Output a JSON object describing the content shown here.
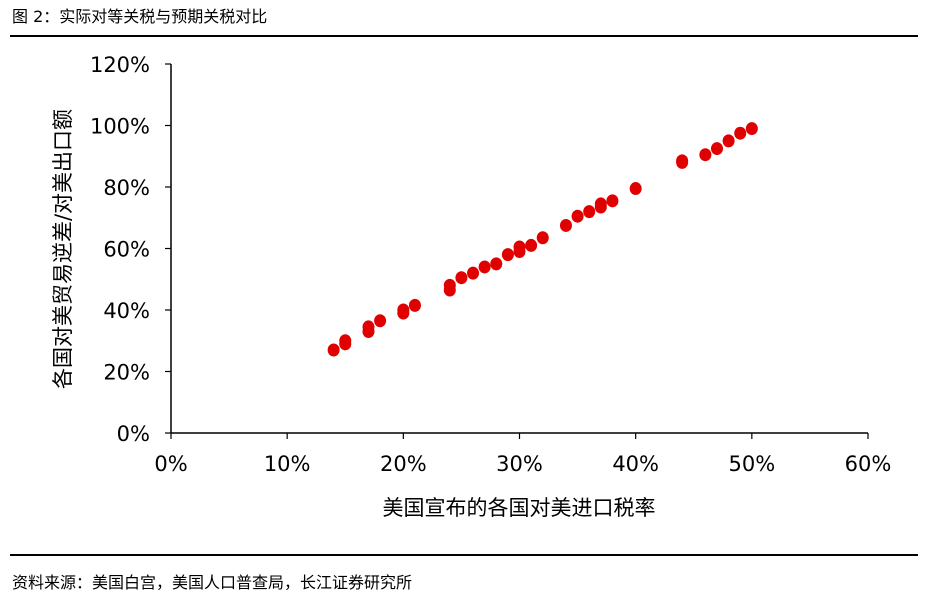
{
  "figure_title": "图 2：实际对等关税与预期关税对比",
  "source": "资料来源：美国白宫，美国人口普查局，长江证券研究所",
  "colors": {
    "marker": "#e00000",
    "axis": "#000000",
    "rule": "#000000"
  },
  "chart_data": {
    "type": "scatter",
    "xlabel": "美国宣布的各国对美进口税率",
    "ylabel": "各国对美贸易逆差/对美出口额",
    "xlim": [
      0,
      0.6
    ],
    "ylim": [
      0,
      1.2
    ],
    "x_ticks": [
      0,
      0.1,
      0.2,
      0.3,
      0.4,
      0.5,
      0.6
    ],
    "y_ticks": [
      0,
      0.2,
      0.4,
      0.6,
      0.8,
      1.0,
      1.2
    ],
    "x_tick_labels": [
      "0%",
      "10%",
      "20%",
      "30%",
      "40%",
      "50%",
      "60%"
    ],
    "y_tick_labels": [
      "0%",
      "20%",
      "40%",
      "60%",
      "80%",
      "100%",
      "120%"
    ],
    "grid": false,
    "points": [
      {
        "x": 0.14,
        "y": 0.27
      },
      {
        "x": 0.15,
        "y": 0.29
      },
      {
        "x": 0.15,
        "y": 0.3
      },
      {
        "x": 0.17,
        "y": 0.33
      },
      {
        "x": 0.17,
        "y": 0.345
      },
      {
        "x": 0.18,
        "y": 0.365
      },
      {
        "x": 0.2,
        "y": 0.39
      },
      {
        "x": 0.2,
        "y": 0.4
      },
      {
        "x": 0.21,
        "y": 0.415
      },
      {
        "x": 0.24,
        "y": 0.465
      },
      {
        "x": 0.24,
        "y": 0.48
      },
      {
        "x": 0.25,
        "y": 0.505
      },
      {
        "x": 0.26,
        "y": 0.52
      },
      {
        "x": 0.27,
        "y": 0.54
      },
      {
        "x": 0.28,
        "y": 0.55
      },
      {
        "x": 0.29,
        "y": 0.58
      },
      {
        "x": 0.3,
        "y": 0.59
      },
      {
        "x": 0.3,
        "y": 0.605
      },
      {
        "x": 0.31,
        "y": 0.61
      },
      {
        "x": 0.32,
        "y": 0.635
      },
      {
        "x": 0.34,
        "y": 0.675
      },
      {
        "x": 0.35,
        "y": 0.705
      },
      {
        "x": 0.36,
        "y": 0.72
      },
      {
        "x": 0.37,
        "y": 0.735
      },
      {
        "x": 0.37,
        "y": 0.745
      },
      {
        "x": 0.38,
        "y": 0.755
      },
      {
        "x": 0.4,
        "y": 0.795
      },
      {
        "x": 0.44,
        "y": 0.88
      },
      {
        "x": 0.44,
        "y": 0.885
      },
      {
        "x": 0.46,
        "y": 0.905
      },
      {
        "x": 0.47,
        "y": 0.925
      },
      {
        "x": 0.48,
        "y": 0.95
      },
      {
        "x": 0.49,
        "y": 0.975
      },
      {
        "x": 0.5,
        "y": 0.99
      }
    ]
  }
}
